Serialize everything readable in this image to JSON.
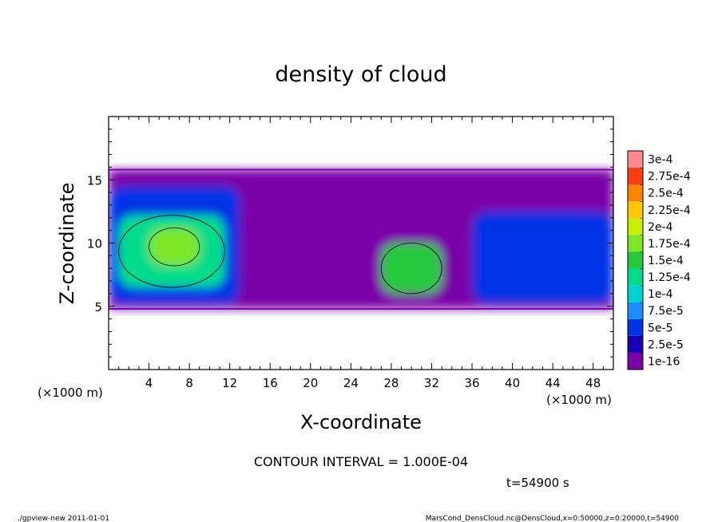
{
  "chart_data": {
    "type": "heatmap",
    "title": "density of cloud",
    "xlabel": "X-coordinate",
    "ylabel": "Z-coordinate",
    "x_unit_label_left": "(×1000 m)",
    "x_unit_label_right": "(×1000 m)",
    "xlim": [
      0,
      50
    ],
    "ylim": [
      0,
      20
    ],
    "x_ticks": [
      4,
      8,
      12,
      16,
      20,
      24,
      28,
      32,
      36,
      40,
      44,
      48
    ],
    "y_ticks": [
      5,
      10,
      15
    ],
    "contour_interval_text": "CONTOUR INTERVAL = 1.000E-04",
    "time_text": "t=54900 s",
    "legend": {
      "placement": "right",
      "levels": [
        {
          "label": "1e-16",
          "color": "#7a00a8"
        },
        {
          "label": "2.5e-5",
          "color": "#1a00b4"
        },
        {
          "label": "5e-5",
          "color": "#0032e6"
        },
        {
          "label": "7.5e-5",
          "color": "#1a8cff"
        },
        {
          "label": "1e-4",
          "color": "#00d2d2"
        },
        {
          "label": "1.25e-4",
          "color": "#00dc8c"
        },
        {
          "label": "1.5e-4",
          "color": "#28c83c"
        },
        {
          "label": "1.75e-4",
          "color": "#7ce628"
        },
        {
          "label": "2e-4",
          "color": "#c8f000"
        },
        {
          "label": "2.25e-4",
          "color": "#ffc800"
        },
        {
          "label": "2.5e-4",
          "color": "#ff8200"
        },
        {
          "label": "2.75e-4",
          "color": "#ff3c14"
        },
        {
          "label": "3e-4",
          "color": "#ff8c8c"
        }
      ]
    },
    "field_description_regions": [
      {
        "x": [
          0,
          50
        ],
        "z": [
          4.8,
          15.8
        ],
        "value": 1e-16
      },
      {
        "x": [
          0,
          13
        ],
        "z": [
          5.2,
          14.5
        ],
        "value": 6e-05
      },
      {
        "x": [
          1,
          11.5
        ],
        "z": [
          6.5,
          12.2
        ],
        "value": 0.00014
      },
      {
        "x": [
          4,
          9
        ],
        "z": [
          8.2,
          11.2
        ],
        "value": 0.00019
      },
      {
        "x": [
          27,
          33
        ],
        "z": [
          6,
          10
        ],
        "value": 0.00015
      },
      {
        "x": [
          36,
          50
        ],
        "z": [
          5.2,
          12.5
        ],
        "value": 7e-05
      }
    ]
  },
  "footer": {
    "left": "./gpview-new   2011-01-01",
    "right": "MarsCond_DensCloud.nc@DensCloud,x=0:50000,z=0:20000,t=54900"
  }
}
